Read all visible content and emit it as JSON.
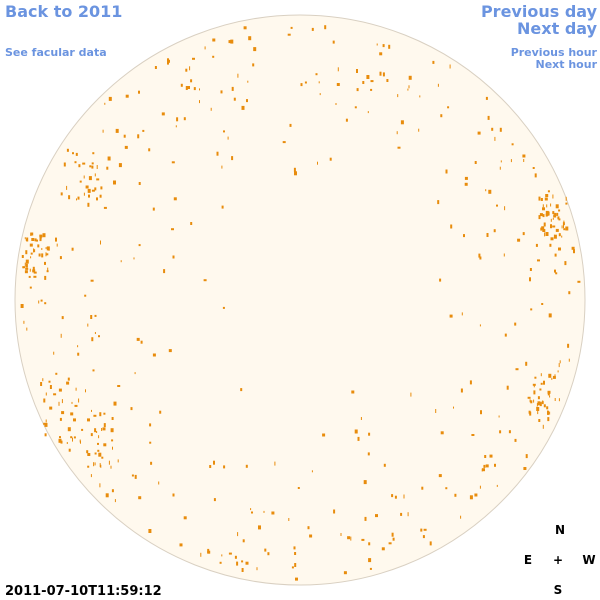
{
  "nav": {
    "back": "Back to 2011",
    "facular": "See facular data",
    "previous_day": "Previous day",
    "next_day": "Next day",
    "previous_hour": "Previous hour",
    "next_hour": "Next hour"
  },
  "timestamp": "2011-07-10T11:59:12",
  "compass": {
    "north": "N",
    "east": "E",
    "center": "+",
    "west": "W",
    "south": "S"
  }
}
